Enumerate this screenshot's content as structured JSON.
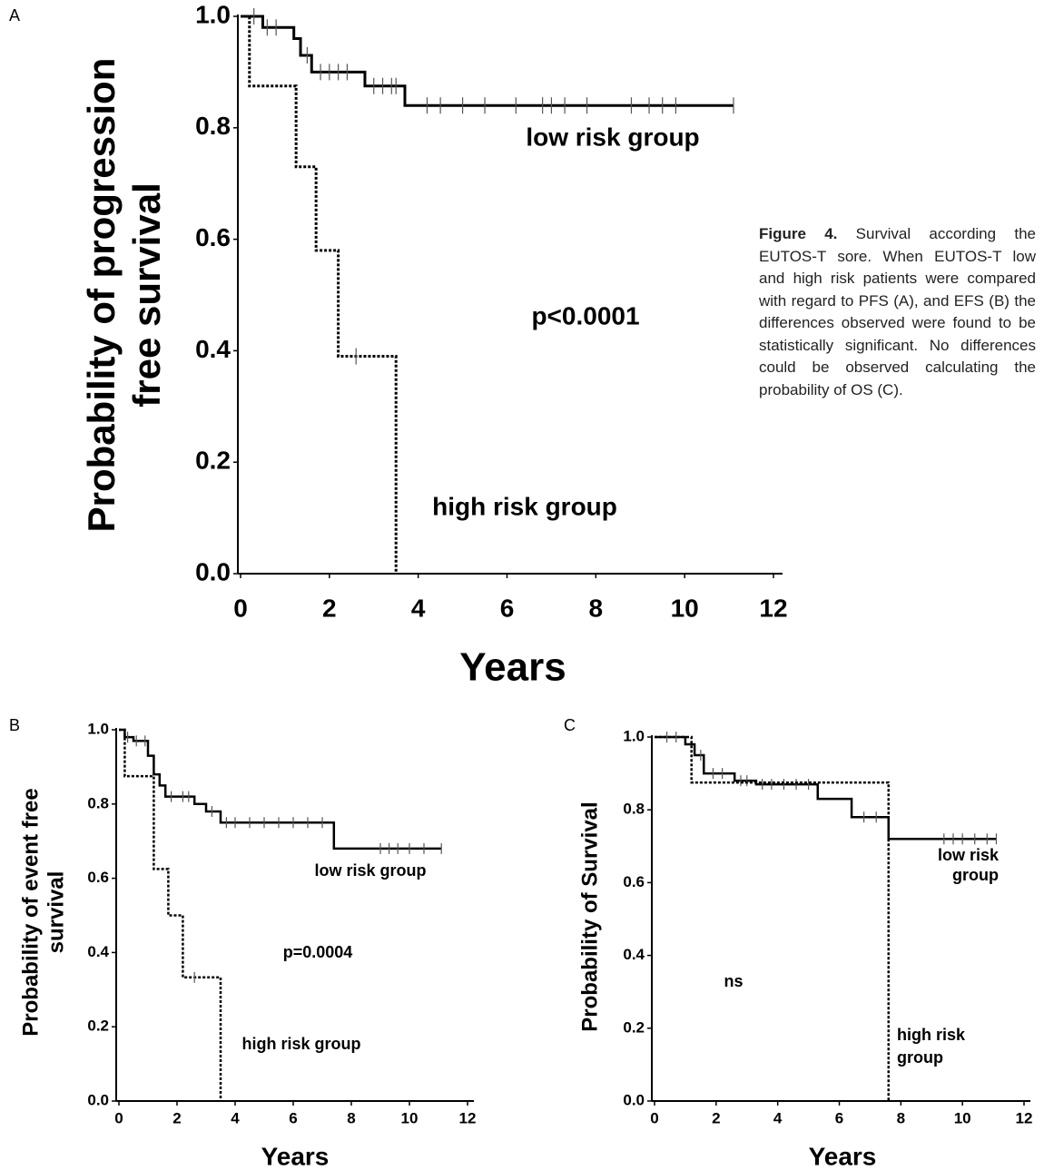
{
  "chart_data": [
    {
      "type": "line",
      "panel": "A",
      "ylabel": [
        "Probability of progression",
        "free survival"
      ],
      "xlabel": "Years",
      "annotations": [
        "low risk group",
        "p<0.0001",
        "high risk group"
      ],
      "xlim": [
        0,
        12
      ],
      "xticks": [
        0,
        2,
        4,
        6,
        8,
        10,
        12
      ],
      "ylim": [
        0,
        1
      ],
      "yticks": [
        {
          "value": 0,
          "label": "0.0"
        },
        0.2,
        0.4,
        0.6,
        0.8,
        {
          "value": 1,
          "label": "1.0"
        }
      ],
      "series": [
        {
          "name": "low risk group",
          "color": "#000000",
          "style": "solid",
          "x": [
            0,
            0.5,
            1.2,
            1.35,
            1.6,
            2.8,
            3.7,
            11.1
          ],
          "values": [
            1,
            0.98,
            0.96,
            0.93,
            0.9,
            0.875,
            0.84,
            0.84
          ],
          "censored": [
            0.3,
            0.6,
            0.8,
            1.5,
            1.8,
            2.0,
            2.2,
            2.4,
            3.0,
            3.2,
            3.4,
            3.5,
            4.2,
            4.5,
            5.0,
            5.5,
            6.2,
            6.8,
            7.0,
            7.3,
            7.8,
            8.8,
            9.2,
            9.5,
            9.8,
            11.1
          ]
        },
        {
          "name": "high risk group",
          "color": "#000000",
          "style": "dotted",
          "x": [
            0,
            0.2,
            1.25,
            1.7,
            2.2,
            3.5
          ],
          "values": [
            1,
            0.875,
            0.73,
            0.58,
            0.39,
            0
          ],
          "censored": [
            2.6
          ]
        }
      ]
    },
    {
      "type": "line",
      "panel": "B",
      "ylabel": [
        "Probability of event free",
        "survival"
      ],
      "xlabel": "Years",
      "annotations": [
        "low risk group",
        "p=0.0004",
        "high risk group"
      ],
      "xlim": [
        0,
        12
      ],
      "xticks": [
        0,
        2,
        4,
        6,
        8,
        10,
        12
      ],
      "ylim": [
        0,
        1
      ],
      "yticks": [
        {
          "value": 0,
          "label": "0.0"
        },
        0.2,
        0.4,
        0.6,
        0.8,
        {
          "value": 1,
          "label": "1.0"
        }
      ],
      "series": [
        {
          "name": "low risk group",
          "color": "#000000",
          "style": "solid",
          "x": [
            0,
            0.2,
            0.5,
            1.0,
            1.2,
            1.4,
            1.6,
            2.6,
            3.0,
            3.5,
            7.4,
            11.1
          ],
          "values": [
            1,
            0.98,
            0.97,
            0.93,
            0.88,
            0.85,
            0.82,
            0.8,
            0.78,
            0.75,
            0.68,
            0.68
          ],
          "censored": [
            0.3,
            0.6,
            0.9,
            1.8,
            2.2,
            2.4,
            3.2,
            3.7,
            4.0,
            4.5,
            5.0,
            5.5,
            6.0,
            6.5,
            7.0,
            9.0,
            9.3,
            9.6,
            10.0,
            10.5,
            11.1
          ]
        },
        {
          "name": "high risk group",
          "color": "#000000",
          "style": "dotted",
          "x": [
            0,
            0.2,
            1.2,
            1.7,
            2.2,
            3.5
          ],
          "values": [
            1,
            0.875,
            0.625,
            0.5,
            0.333,
            0
          ],
          "censored": [
            2.6
          ]
        }
      ]
    },
    {
      "type": "line",
      "panel": "C",
      "ylabel": [
        "Probability of Survival"
      ],
      "xlabel": "Years",
      "annotations": [
        "low risk",
        "group",
        "ns",
        "high risk",
        "group"
      ],
      "xlim": [
        0,
        12
      ],
      "xticks": [
        0,
        2,
        4,
        6,
        8,
        10,
        12
      ],
      "ylim": [
        0,
        1
      ],
      "yticks": [
        {
          "value": 0,
          "label": "0.0"
        },
        0.2,
        0.4,
        0.6,
        0.8,
        {
          "value": 1,
          "label": "1.0"
        }
      ],
      "series": [
        {
          "name": "low risk group",
          "color": "#000000",
          "style": "solid",
          "x": [
            0,
            1.0,
            1.3,
            1.6,
            2.6,
            3.3,
            5.3,
            6.4,
            7.6,
            11.1
          ],
          "values": [
            1,
            0.98,
            0.95,
            0.9,
            0.88,
            0.87,
            0.83,
            0.78,
            0.72,
            0.72
          ],
          "censored": [
            0.4,
            0.7,
            1.5,
            1.9,
            2.2,
            2.8,
            3.0,
            3.5,
            3.8,
            4.2,
            4.6,
            5.0,
            6.8,
            7.2,
            9.4,
            9.7,
            10.0,
            10.4,
            10.8,
            11.1
          ]
        },
        {
          "name": "high risk group",
          "color": "#000000",
          "style": "dotted",
          "x": [
            0,
            1.2,
            7.6
          ],
          "values": [
            1,
            0.875,
            0
          ],
          "censored": []
        }
      ]
    }
  ],
  "caption": {
    "label": "Figure 4.",
    "text": "Survival according the EUTOS-T sore. When EUTOS-T low and high risk patients were compared with regard to PFS (A), and EFS (B) the differences observed were found to be statistically significant. No differences could be observed calculating the probability of OS (C)."
  }
}
